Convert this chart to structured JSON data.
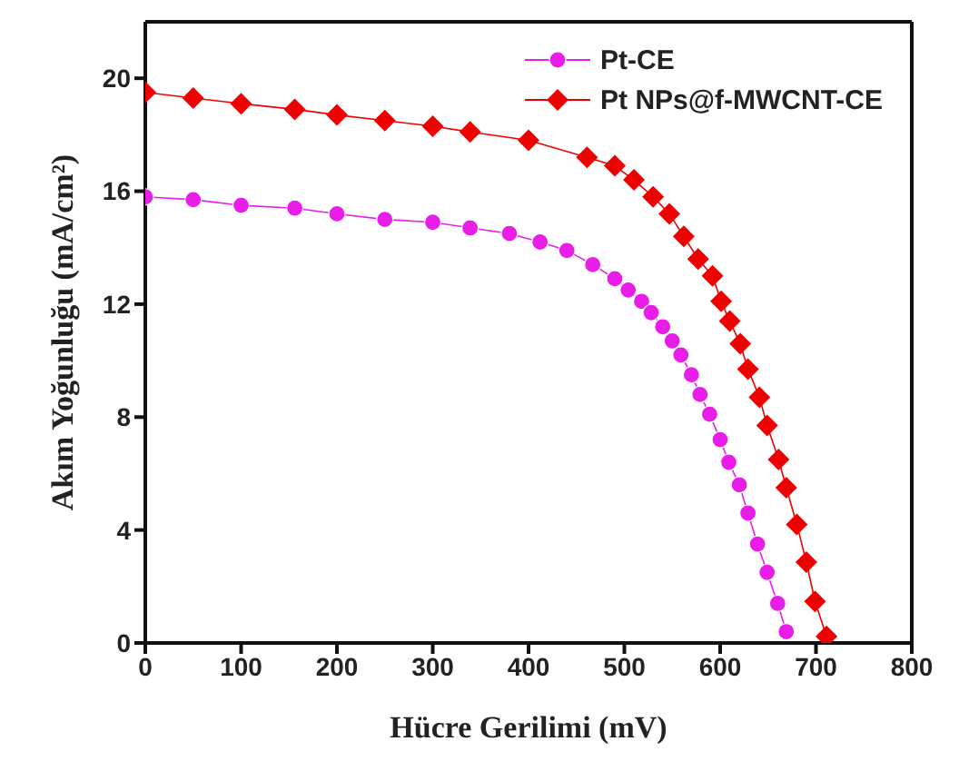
{
  "chart_data": {
    "type": "line",
    "xlabel": "Hücre Gerilimi (mV)",
    "ylabel": "Akım Yoğunluğu (mA/cm²)",
    "xlim": [
      0,
      800
    ],
    "xticks": [
      0,
      100,
      200,
      300,
      400,
      500,
      600,
      700,
      800
    ],
    "ylim": [
      0,
      22
    ],
    "yticks": [
      0,
      4,
      8,
      12,
      16,
      20
    ],
    "legend": "top right",
    "series": [
      {
        "name": "Pt-CE",
        "color": "#e81ee8",
        "marker": "circle",
        "x": [
          0,
          50,
          100,
          156,
          200,
          250,
          300,
          339,
          380,
          412,
          440,
          467,
          490,
          504,
          518,
          528,
          540,
          550,
          559,
          570,
          579,
          589,
          600,
          609,
          620,
          629,
          639,
          649,
          660,
          669
        ],
        "values": [
          15.8,
          15.7,
          15.5,
          15.4,
          15.2,
          15.0,
          14.9,
          14.7,
          14.5,
          14.2,
          13.9,
          13.4,
          12.9,
          12.5,
          12.1,
          11.7,
          11.2,
          10.7,
          10.2,
          9.5,
          8.8,
          8.1,
          7.2,
          6.4,
          5.6,
          4.6,
          3.5,
          2.5,
          1.4,
          0.4
        ]
      },
      {
        "name": "Pt NPs@f-MWCNT-CE",
        "color": "#ee0000",
        "marker": "diamond",
        "x": [
          0,
          50,
          100,
          156,
          200,
          250,
          300,
          339,
          400,
          461,
          490,
          510,
          530,
          547,
          562,
          577,
          592,
          601,
          610,
          621,
          629,
          641,
          649,
          661,
          669,
          680,
          690,
          699,
          711
        ],
        "values": [
          19.5,
          19.3,
          19.1,
          18.9,
          18.7,
          18.5,
          18.3,
          18.1,
          17.8,
          17.2,
          16.9,
          16.4,
          15.8,
          15.2,
          14.4,
          13.6,
          13.0,
          12.1,
          11.4,
          10.6,
          9.7,
          8.7,
          7.7,
          6.5,
          5.5,
          4.2,
          2.86,
          1.47,
          0.23
        ]
      }
    ]
  }
}
